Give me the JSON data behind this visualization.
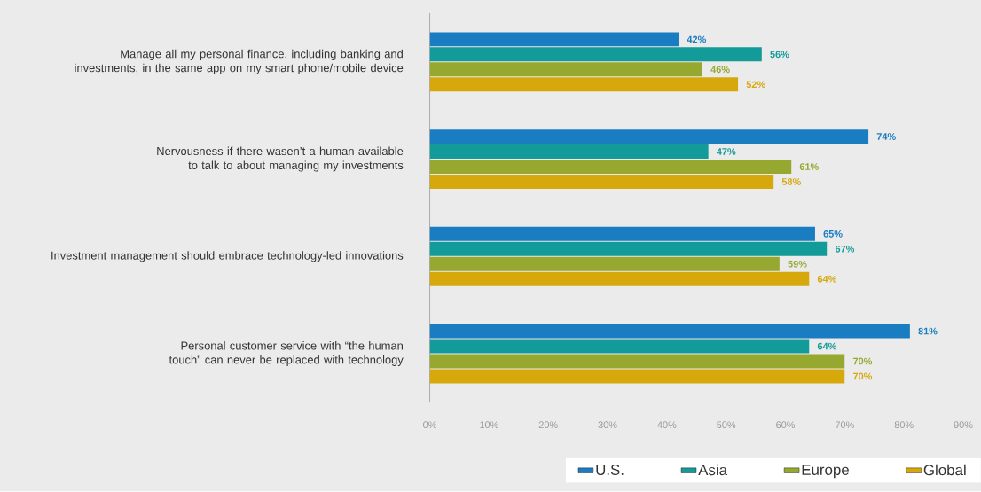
{
  "chart_data": {
    "type": "bar",
    "orientation": "horizontal",
    "categories": [
      "Manage all my personal finance, including banking and investments, in the same app on my smart phone/mobile device",
      "Nervousness if there wasen’t a human available to talk to about managing my investments",
      "Investment management should embrace technology-led innovations",
      "Personal customer service with “the human touch” can never be replaced with technology"
    ],
    "series": [
      {
        "name": "U.S.",
        "color": "#1a7cc1",
        "values": [
          42,
          74,
          65,
          81
        ],
        "value_labels": [
          "42%",
          "74%",
          "65%",
          "81%"
        ]
      },
      {
        "name": "Asia",
        "color": "#129b98",
        "values": [
          56,
          47,
          67,
          64
        ],
        "value_labels": [
          "56%",
          "47%",
          "67%",
          "64%"
        ]
      },
      {
        "name": "Europe",
        "color": "#97a831",
        "values": [
          46,
          61,
          59,
          70
        ],
        "value_labels": [
          "46%",
          "61%",
          "59%",
          "70%"
        ]
      },
      {
        "name": "Global",
        "color": "#d6a80c",
        "values": [
          52,
          58,
          64,
          70
        ],
        "value_labels": [
          "52%",
          "58%",
          "64%",
          "70%"
        ]
      }
    ],
    "xlim": [
      0,
      90
    ],
    "xticks": [
      {
        "value": 0,
        "label": "0%"
      },
      {
        "value": 10,
        "label": "10%"
      },
      {
        "value": 20,
        "label": "20%"
      },
      {
        "value": 30,
        "label": "30%"
      },
      {
        "value": 40,
        "label": "40%"
      },
      {
        "value": 50,
        "label": "50%"
      },
      {
        "value": 60,
        "label": "60%"
      },
      {
        "value": 70,
        "label": "70%"
      },
      {
        "value": 80,
        "label": "80%"
      },
      {
        "value": 90,
        "label": "90%"
      }
    ],
    "grid": false,
    "legend": "bottom"
  }
}
